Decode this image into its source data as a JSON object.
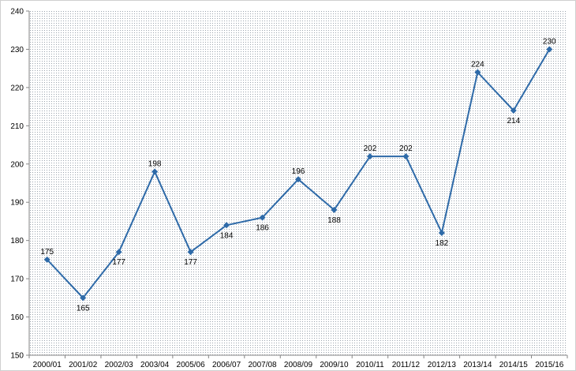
{
  "chart_data": {
    "type": "line",
    "title": "",
    "xlabel": "",
    "ylabel": "",
    "categories": [
      "2000/01",
      "2001/02",
      "2002/03",
      "2003/04",
      "2005/06",
      "2006/07",
      "2007/08",
      "2008/09",
      "2009/10",
      "2010/11",
      "2011/12",
      "2012/13",
      "2013/14",
      "2014/15",
      "2015/16"
    ],
    "series": [
      {
        "values": [
          175,
          165,
          177,
          198,
          177,
          184,
          186,
          196,
          188,
          202,
          202,
          182,
          224,
          214,
          230
        ]
      }
    ],
    "label_position": [
      "above",
      "below",
      "below",
      "above",
      "below",
      "below",
      "below",
      "above",
      "below",
      "above",
      "above",
      "below",
      "above",
      "below",
      "above"
    ],
    "ylim": [
      150,
      240
    ],
    "yticks": [
      150,
      160,
      170,
      180,
      190,
      200,
      210,
      220,
      230,
      240
    ],
    "grid": false,
    "legend": "none",
    "marker": "diamond",
    "colors": {
      "line": "#2e6aa8",
      "background_dots": "#9aa3ad"
    }
  }
}
